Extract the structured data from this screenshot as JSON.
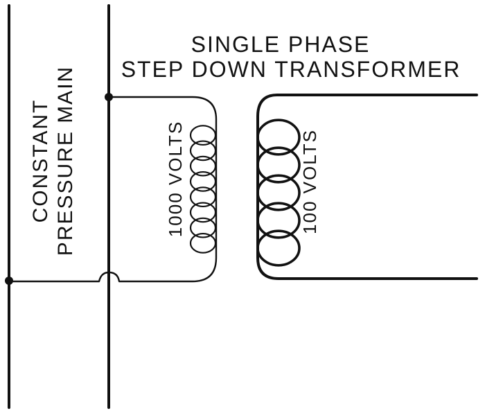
{
  "title": {
    "line1": "SINGLE PHASE",
    "line2": "STEP DOWN TRANSFORMER"
  },
  "main_label": {
    "line1": "CONSTANT",
    "line2": "PRESSURE MAIN"
  },
  "primary": {
    "voltage_label": "1000 VOLTS",
    "turns": 8
  },
  "secondary": {
    "voltage_label": "100 VOLTS",
    "turns": 5
  },
  "colors": {
    "ink": "#111111",
    "background": "#ffffff"
  }
}
